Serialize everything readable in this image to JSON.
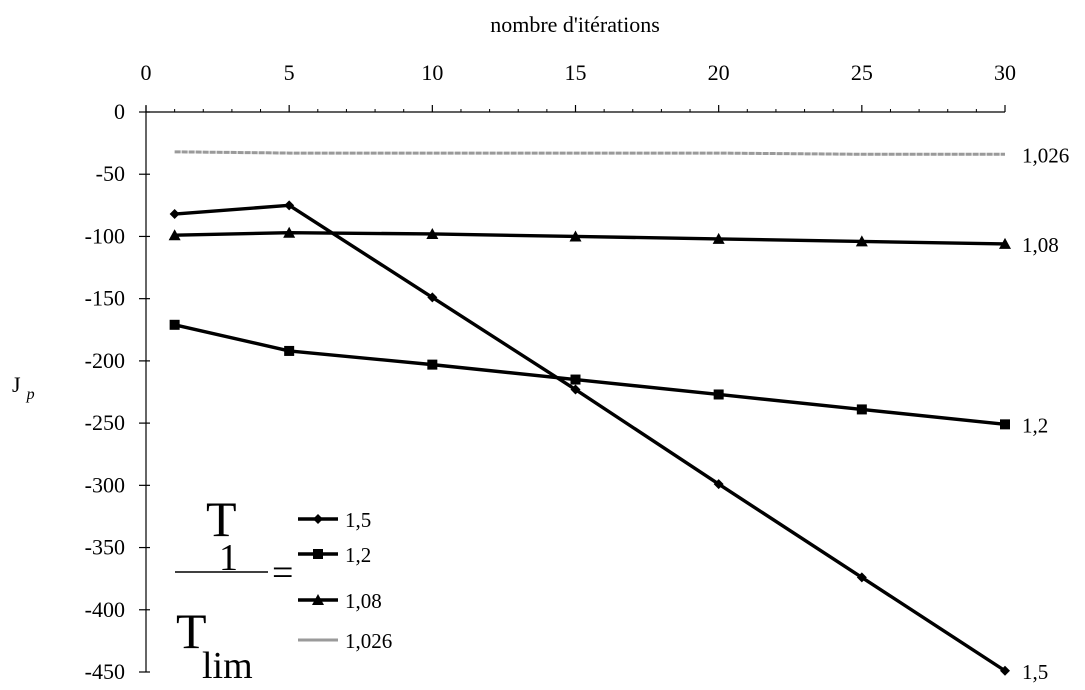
{
  "chart_data": {
    "type": "line",
    "xlabel": "nombre d'itérations",
    "ylabel": "J",
    "ylabel_subscript": "p",
    "x_ticks": [
      "0",
      "5",
      "10",
      "15",
      "20",
      "25",
      "30"
    ],
    "y_ticks": [
      "0",
      "-50",
      "-100",
      "-150",
      "-200",
      "-250",
      "-300",
      "-350",
      "-400",
      "-450"
    ],
    "xlim": [
      0,
      30
    ],
    "ylim": [
      -450,
      0
    ],
    "x_axis_position": "top",
    "grid": false,
    "legend": {
      "placement": "bottom-left",
      "fraction_numerator": "T",
      "fraction_numerator_subscript": "1",
      "fraction_denominator": "T",
      "fraction_denominator_subscript": "lim",
      "equals": "="
    },
    "series": [
      {
        "name": "1,5",
        "end_label": "1,5",
        "marker": "diamond",
        "color": "#000000",
        "x": [
          1,
          5,
          10,
          15,
          20,
          25,
          30
        ],
        "y": [
          -82,
          -75,
          -149,
          -223,
          -299,
          -374,
          -449
        ]
      },
      {
        "name": "1,2",
        "end_label": "1,2",
        "marker": "square",
        "color": "#000000",
        "x": [
          1,
          5,
          10,
          15,
          20,
          25,
          30
        ],
        "y": [
          -171,
          -192,
          -203,
          -215,
          -227,
          -239,
          -251
        ]
      },
      {
        "name": "1,08",
        "end_label": "1,08",
        "marker": "triangle",
        "color": "#000000",
        "x": [
          1,
          5,
          10,
          15,
          20,
          25,
          30
        ],
        "y": [
          -99,
          -97,
          -98,
          -100,
          -102,
          -104,
          -106
        ]
      },
      {
        "name": "1,026",
        "end_label": "1,026",
        "marker": "none",
        "color": "#9a9a9a",
        "x": [
          1,
          5,
          10,
          15,
          20,
          25,
          30
        ],
        "y": [
          -32,
          -33,
          -33,
          -33,
          -33,
          -34,
          -34
        ]
      }
    ]
  }
}
